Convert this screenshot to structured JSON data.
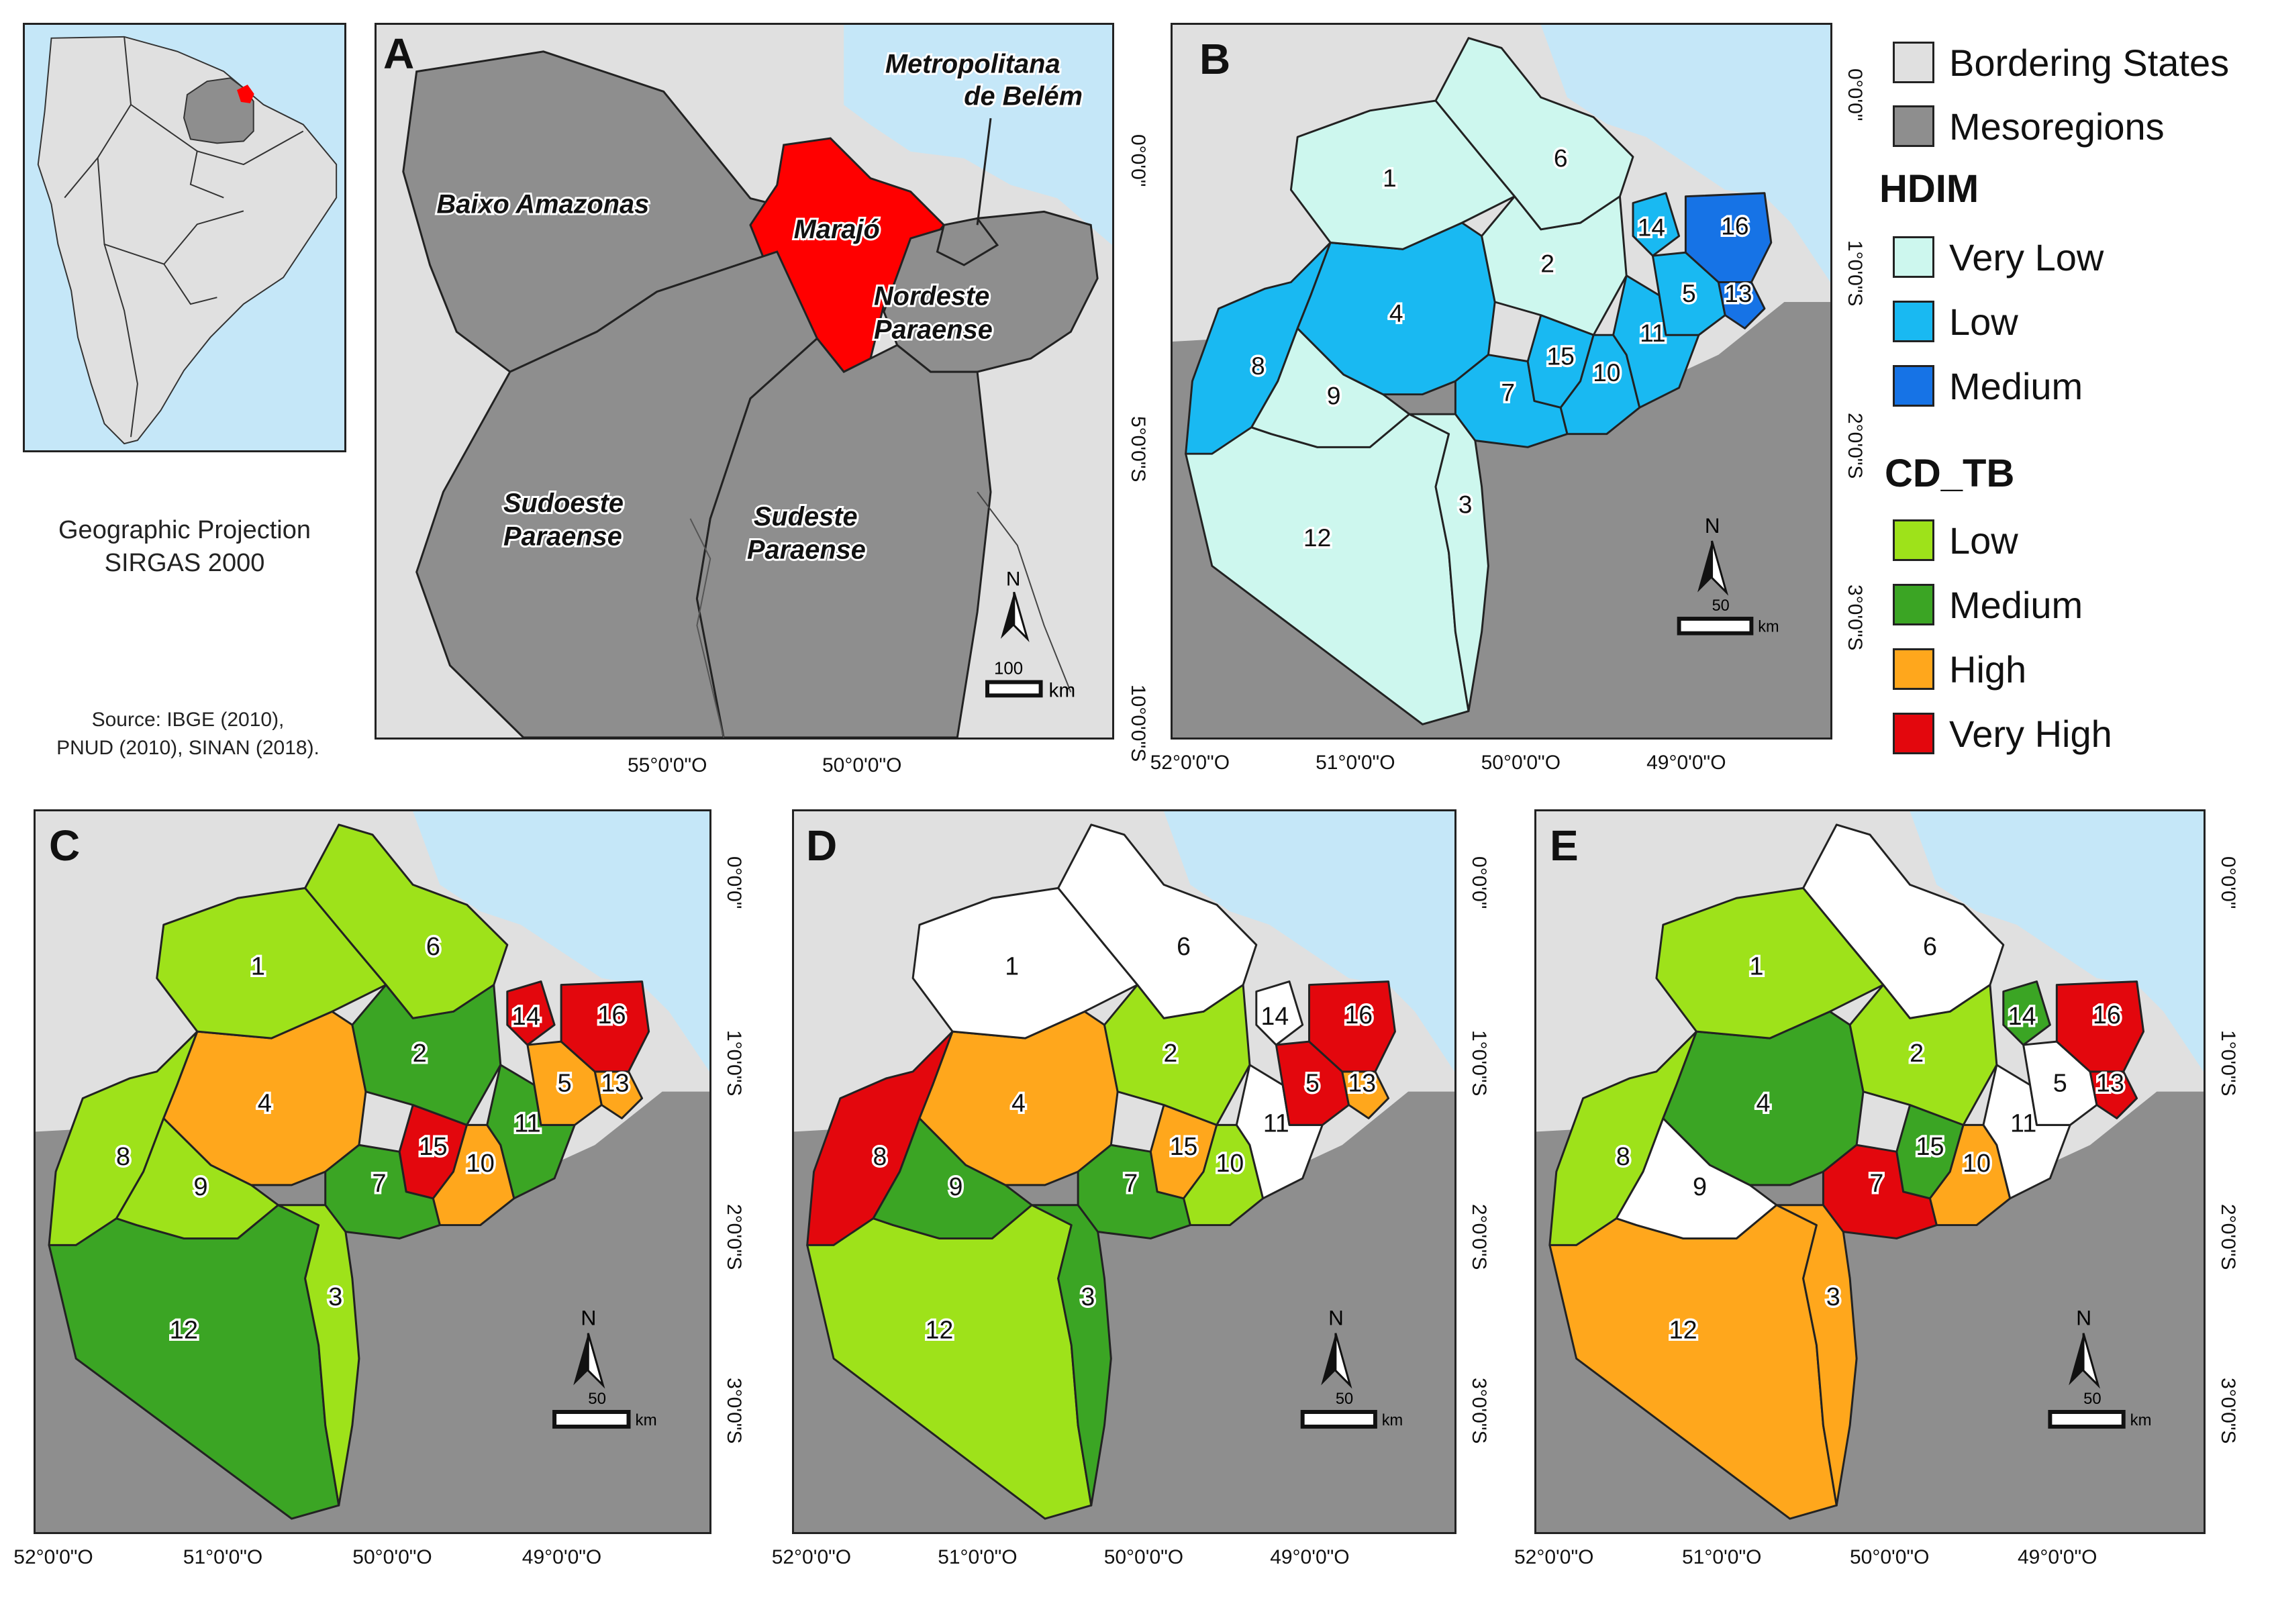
{
  "colors": {
    "sea": "#c5e7f8",
    "bordering": "#e0e0e0",
    "meso": "#8e8e8e",
    "hdim_very_low": "#cdf7ee",
    "hdim_low": "#19b9f2",
    "hdim_medium": "#1673e6",
    "tb_none": "#ffffff",
    "tb_low": "#9ee21a",
    "tb_medium": "#3ba524",
    "tb_high": "#ffa71c",
    "tb_very_high": "#e3070d",
    "highlight": "#ff0000"
  },
  "inset": {
    "projection_line1": "Geographic Projection",
    "projection_line2": "SIRGAS 2000",
    "source_line1": "Source: IBGE (2010),",
    "source_line2": "PNUD (2010), SINAN (2018)."
  },
  "panel_a": {
    "letter": "A",
    "regions": [
      "Baixo Amazonas",
      "Marajó",
      "Nordeste",
      "Paraense",
      "Metropolitana",
      "de Belém",
      "Sudoeste",
      "Paraense",
      "Sudeste",
      "Paraense"
    ],
    "scale_value": "100",
    "scale_unit": "km",
    "north": "N",
    "x_ticks": [
      "55°0'0\"O",
      "50°0'0\"O"
    ],
    "y_ticks": [
      "0°0'0\"",
      "5°0'0\"S",
      "10°0'0\"S"
    ]
  },
  "panel_b": {
    "letter": "B"
  },
  "panel_c": {
    "letter": "C"
  },
  "panel_d": {
    "letter": "D"
  },
  "panel_e": {
    "letter": "E"
  },
  "zoom_x_ticks": [
    "52°0'0\"O",
    "51°0'0\"O",
    "50°0'0\"O",
    "49°0'0\"O"
  ],
  "zoom_y_ticks": [
    "0°0'0\"",
    "1°0'0\"S",
    "2°0'0\"S",
    "3°0'0\"S"
  ],
  "zoom_scale_value": "50",
  "zoom_scale_unit": "km",
  "municipality_labels": [
    "1",
    "2",
    "3",
    "4",
    "5",
    "6",
    "7",
    "8",
    "9",
    "10",
    "11",
    "12",
    "13",
    "14",
    "15",
    "16"
  ],
  "classes": {
    "hdim": {
      "1": "very_low",
      "2": "very_low",
      "3": "very_low",
      "4": "low",
      "5": "low",
      "6": "very_low",
      "7": "low",
      "8": "low",
      "9": "very_low",
      "10": "low",
      "11": "low",
      "12": "very_low",
      "13": "medium",
      "14": "low",
      "15": "low",
      "16": "medium"
    },
    "c": {
      "1": "low",
      "2": "medium",
      "3": "low",
      "4": "high",
      "5": "high",
      "6": "low",
      "7": "medium",
      "8": "low",
      "9": "low",
      "10": "high",
      "11": "medium",
      "12": "medium",
      "13": "high",
      "14": "very_high",
      "15": "very_high",
      "16": "very_high"
    },
    "d": {
      "1": "none",
      "2": "low",
      "3": "medium",
      "4": "high",
      "5": "very_high",
      "6": "none",
      "7": "medium",
      "8": "very_high",
      "9": "medium",
      "10": "low",
      "11": "none",
      "12": "low",
      "13": "high",
      "14": "none",
      "15": "high",
      "16": "very_high"
    },
    "e": {
      "1": "low",
      "2": "low",
      "3": "high",
      "4": "medium",
      "5": "none",
      "6": "none",
      "7": "very_high",
      "8": "low",
      "9": "none",
      "10": "high",
      "11": "none",
      "12": "high",
      "13": "very_high",
      "14": "medium",
      "15": "medium",
      "16": "very_high"
    }
  },
  "legend": {
    "bordering": "Bordering States",
    "meso": "Mesoregions",
    "hdim_title": "HDIM",
    "hdim_very_low": "Very Low",
    "hdim_low": "Low",
    "hdim_medium": "Medium",
    "tb_title": "CD_TB",
    "tb_low": "Low",
    "tb_medium": "Medium",
    "tb_high": "High",
    "tb_very_high": "Very High"
  }
}
